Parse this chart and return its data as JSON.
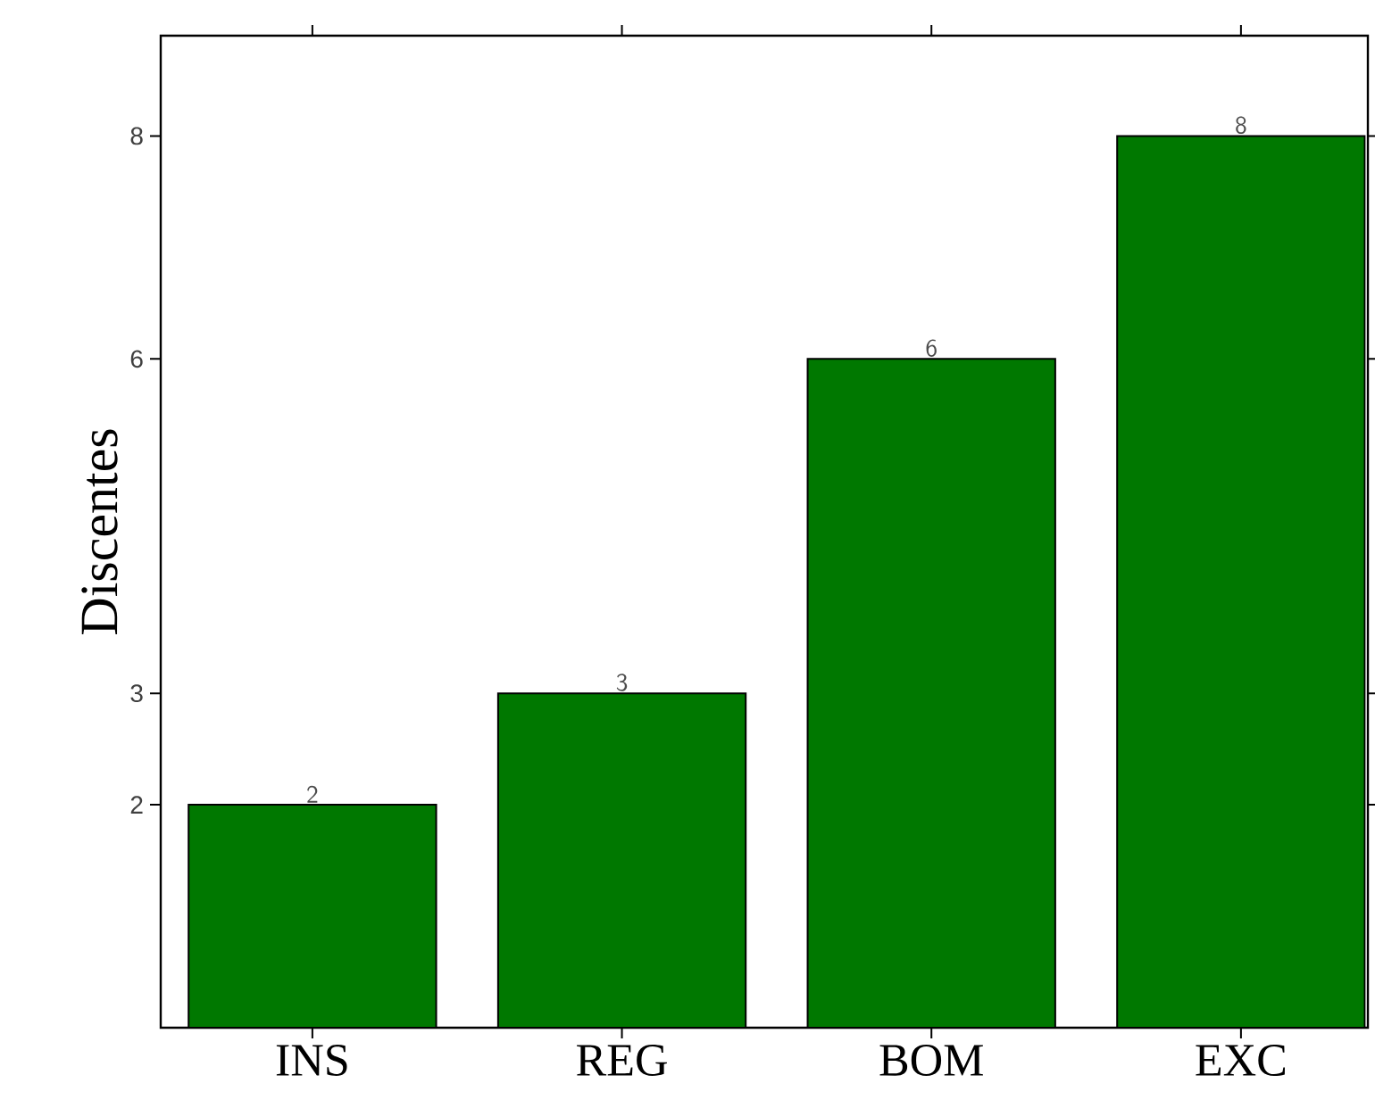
{
  "chart_data": {
    "type": "bar",
    "ylabel": "Discentes",
    "categories": [
      "INS",
      "REG",
      "BOM",
      "EXC"
    ],
    "values": [
      2,
      3,
      6,
      8
    ],
    "color": "#007800",
    "ylim": [
      0,
      8.9
    ],
    "yticks": [
      2,
      3,
      6,
      8
    ],
    "data_labels": true
  }
}
